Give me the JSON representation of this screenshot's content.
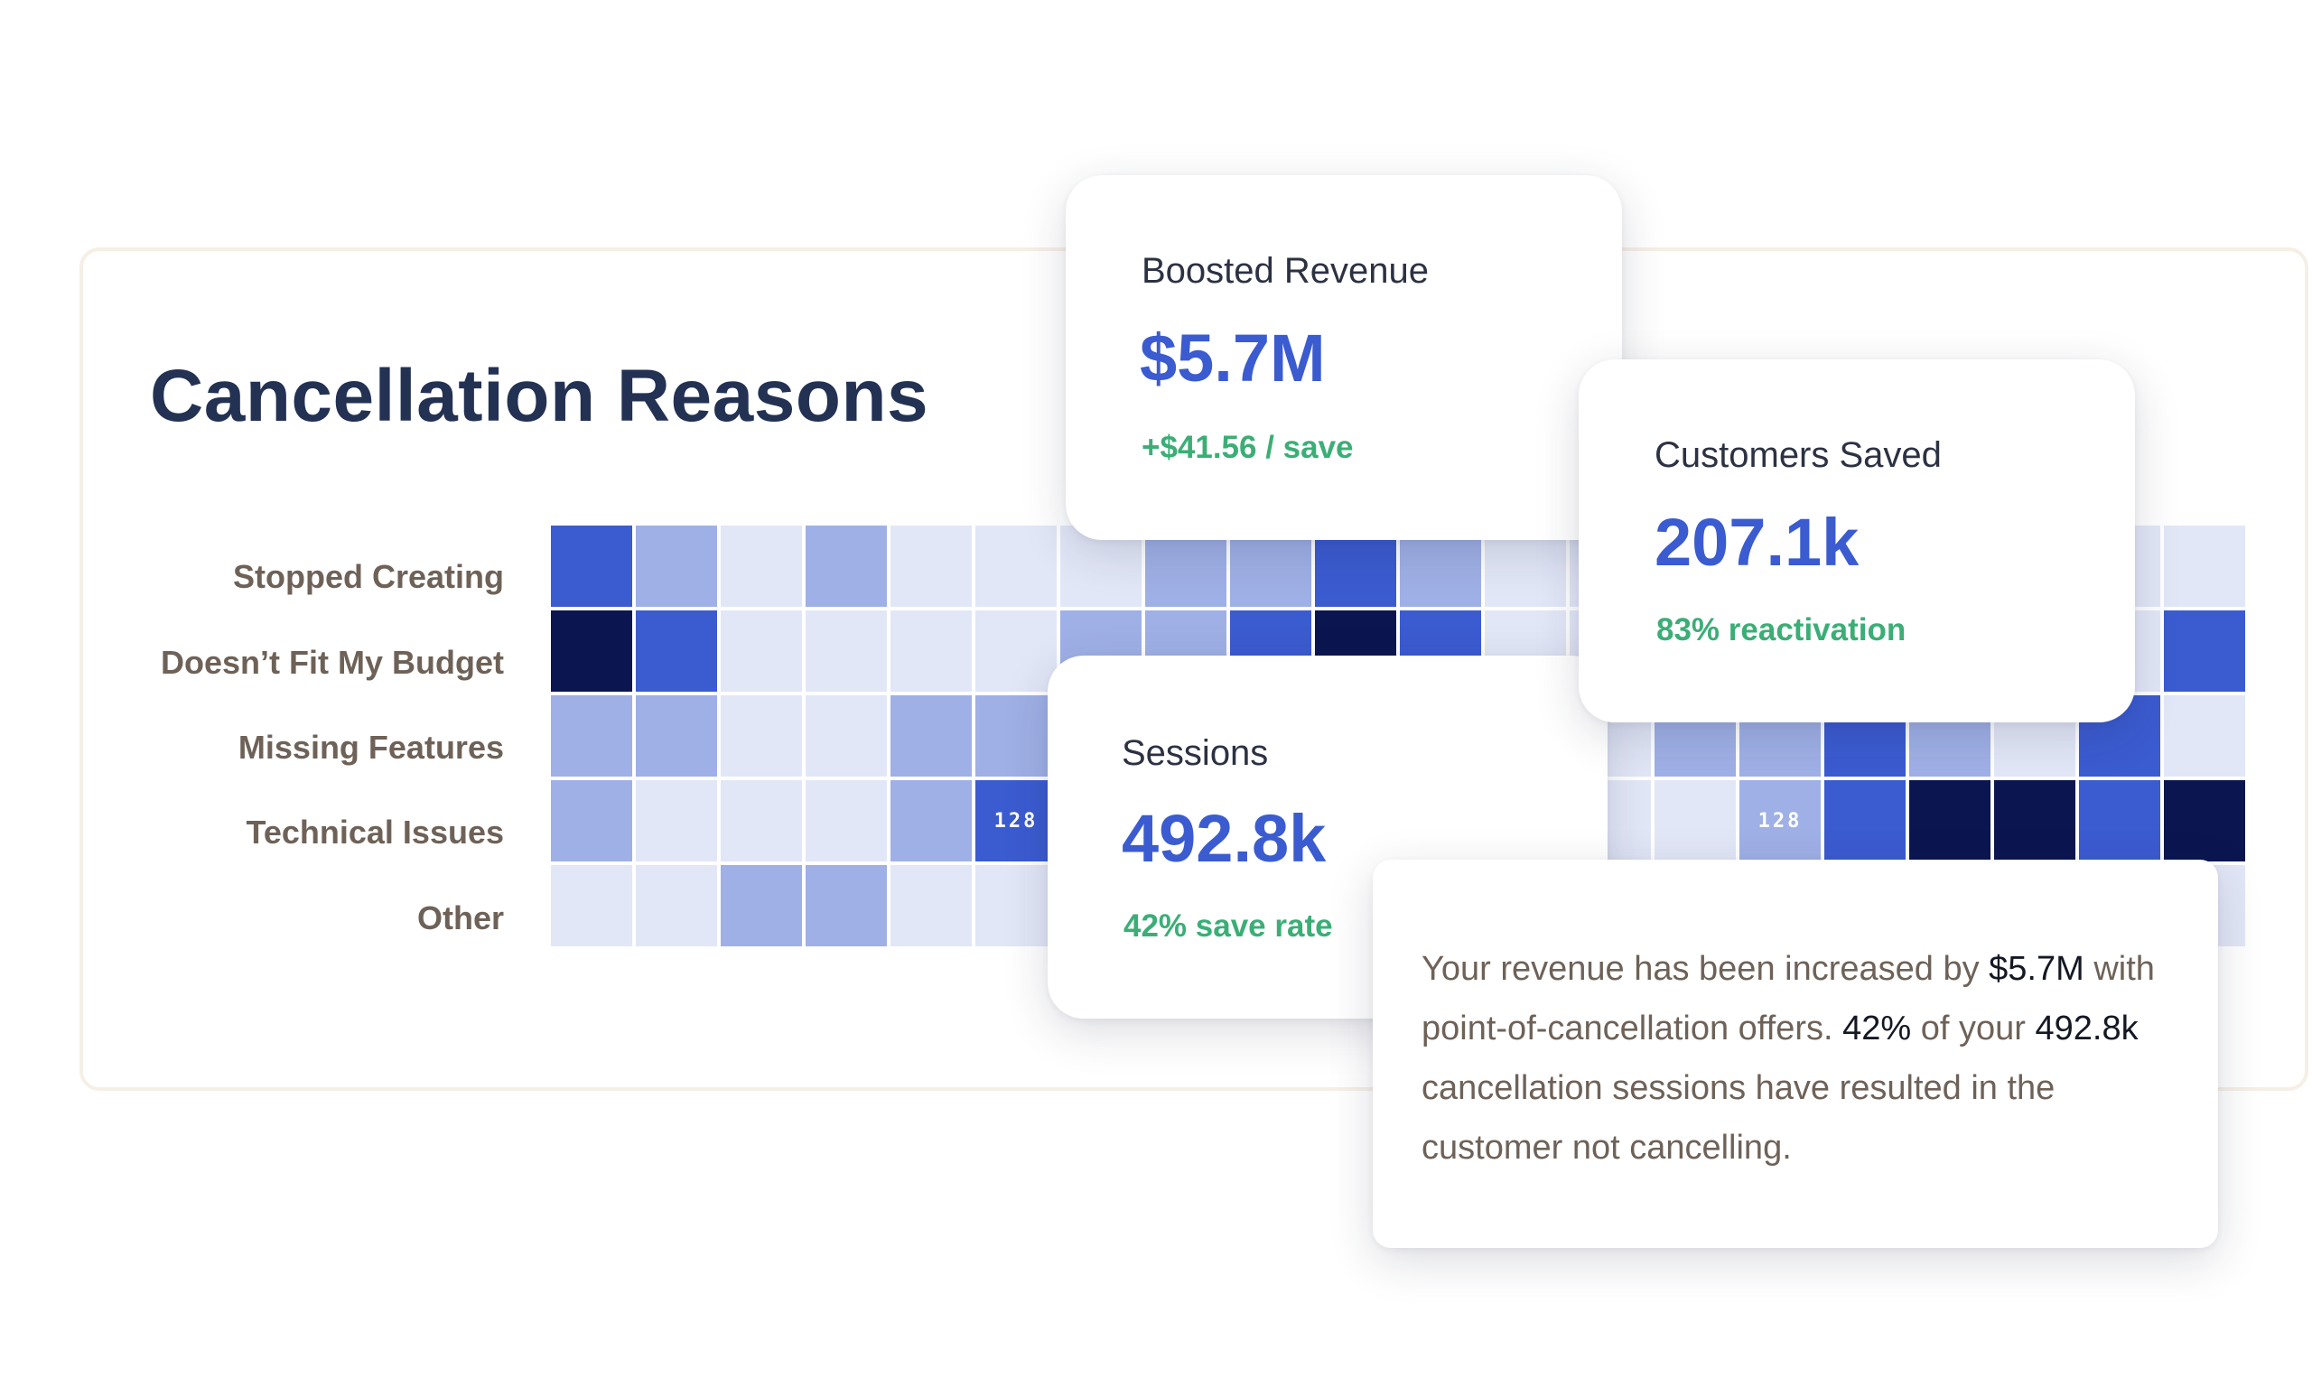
{
  "panel": {
    "title": "Cancellation Reasons",
    "rows": [
      "Stopped Creating",
      "Doesn’t Fit My Budget",
      "Missing Features",
      "Technical Issues",
      "Other"
    ]
  },
  "colors": {
    "lightest": "#e2e7f7",
    "light": "#9fb0e6",
    "mid": "#3b5bd0",
    "dark": "#0b1650",
    "accent_value": "#3b5bd0",
    "accent_sub": "#3bae76"
  },
  "heatmap": {
    "levels_legend": "0=lightest, 1=light, 2=mid, 3=dark",
    "grid": [
      [
        2,
        1,
        0,
        1,
        0,
        0,
        0,
        1,
        1,
        2,
        1,
        0,
        0,
        0,
        0,
        0,
        0,
        0,
        0,
        0
      ],
      [
        3,
        2,
        0,
        0,
        0,
        0,
        1,
        1,
        2,
        3,
        2,
        0,
        0,
        0,
        0,
        0,
        0,
        0,
        0,
        2
      ],
      [
        1,
        1,
        0,
        0,
        1,
        1,
        0,
        0,
        0,
        0,
        0,
        0,
        0,
        1,
        1,
        2,
        1,
        0,
        2,
        0
      ],
      [
        1,
        0,
        0,
        0,
        1,
        2,
        0,
        0,
        0,
        0,
        0,
        0,
        0,
        0,
        1,
        2,
        3,
        3,
        2,
        3
      ],
      [
        0,
        0,
        1,
        1,
        0,
        0,
        0,
        0,
        0,
        0,
        0,
        0,
        0,
        0,
        0,
        0,
        0,
        0,
        0,
        0
      ]
    ],
    "labels": [
      {
        "row": 3,
        "col": 5,
        "text": "128"
      },
      {
        "row": 3,
        "col": 14,
        "text": "128"
      }
    ]
  },
  "cards": {
    "revenue": {
      "label": "Boosted Revenue",
      "value": "$5.7M",
      "sub": "+$41.56 / save"
    },
    "customers": {
      "label": "Customers Saved",
      "value": "207.1k",
      "sub": "83% reactivation"
    },
    "sessions": {
      "label": "Sessions",
      "value": "492.8k",
      "sub": "42% save rate"
    }
  },
  "summary": {
    "t1": "Your revenue has been increased by ",
    "b1": "$5.7M",
    "t2": " with point-of-cancellation offers. ",
    "b2": "42%",
    "t3": " of your ",
    "b3": "492.8k",
    "t4": " cancellation sessions have resulted in the customer not cancelling."
  }
}
